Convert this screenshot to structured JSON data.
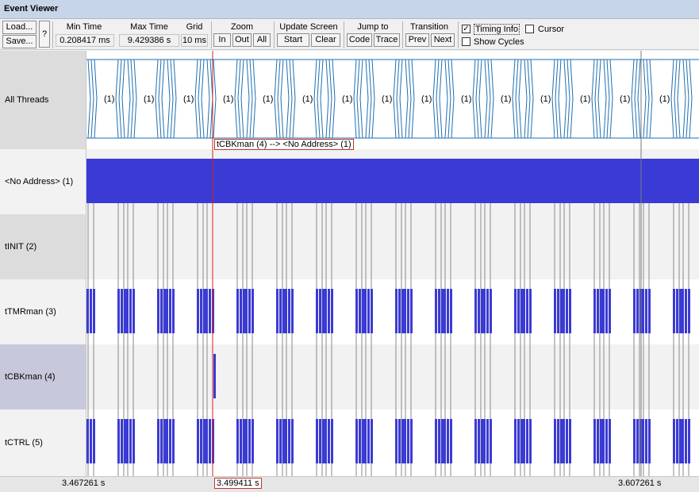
{
  "window": {
    "title": "Event Viewer"
  },
  "toolbar": {
    "load_label": "Load...",
    "save_label": "Save...",
    "help_label": "?",
    "min_time_label": "Min Time",
    "min_time_value": "0.208417 ms",
    "max_time_label": "Max Time",
    "max_time_value": "9.429386 s",
    "grid_label": "Grid",
    "grid_value": "10 ms",
    "zoom_label": "Zoom",
    "zoom_in": "In",
    "zoom_out": "Out",
    "zoom_all": "All",
    "update_label": "Update Screen",
    "update_start": "Start",
    "update_clear": "Clear",
    "jump_label": "Jump to",
    "jump_code": "Code",
    "jump_trace": "Trace",
    "transition_label": "Transition",
    "transition_prev": "Prev",
    "transition_next": "Next",
    "timing_info_label": "Timing Info",
    "timing_info_checked": true,
    "cursor_label": "Cursor",
    "cursor_checked": false,
    "show_cycles_label": "Show Cycles",
    "show_cycles_checked": false
  },
  "rows": [
    {
      "label": "All Threads",
      "type": "all"
    },
    {
      "label": "<No Address> (1)",
      "type": "solid"
    },
    {
      "label": "tINIT (2)",
      "type": "empty"
    },
    {
      "label": "tTMRman (3)",
      "type": "bursts"
    },
    {
      "label": "tCBKman (4)",
      "type": "single"
    },
    {
      "label": "tCTRL (5)",
      "type": "bursts"
    }
  ],
  "all_threads_marker": "(1)",
  "cursor_tooltip": "tCBKman (4) --> <No Address> (1)",
  "timeline": {
    "left_time": "3.467261 s",
    "cursor_time": "3.499411 s",
    "right_time": "3.607261 s"
  },
  "colors": {
    "bar": "#3a3ad4",
    "all_threads_line": "#1f6fb0",
    "cursor": "#d02020",
    "row_shade": "#f2f2f2",
    "row_label_shade": "#dcdcdc",
    "row_label_selected": "#c8c8dc"
  }
}
